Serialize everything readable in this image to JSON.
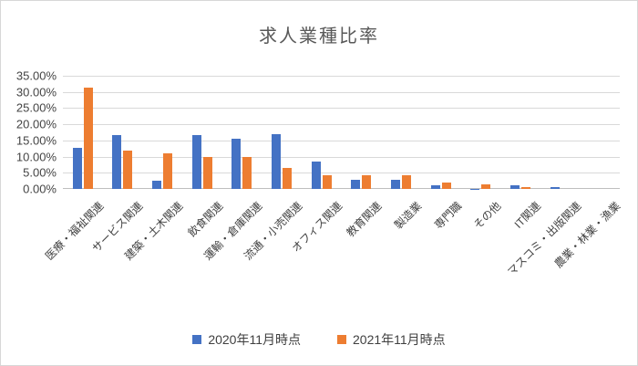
{
  "chart_data": {
    "type": "bar",
    "title": "求人業種比率",
    "categories": [
      "医療・福祉関連",
      "サービス関連",
      "建築・土木関連",
      "飲食関連",
      "運輸・倉庫関連",
      "流通・小売関連",
      "オフィス関連",
      "教育関連",
      "製造業",
      "専門職",
      "その他",
      "IT関連",
      "マスコミ・出版関連",
      "農業・林業・漁業"
    ],
    "series": [
      {
        "name": "2020年11月時点",
        "color": "#4472C4",
        "values": [
          12.8,
          16.6,
          2.6,
          16.7,
          15.5,
          16.8,
          8.4,
          2.7,
          2.7,
          1.2,
          0.1,
          1.2,
          0.5,
          0.0
        ]
      },
      {
        "name": "2021年11月時点",
        "color": "#ED7D31",
        "values": [
          31.2,
          11.9,
          10.9,
          10.0,
          10.0,
          6.6,
          4.2,
          4.2,
          4.2,
          1.9,
          1.5,
          0.5,
          0.0,
          0.0
        ]
      }
    ],
    "ylim": [
      0,
      35
    ],
    "ytick_step": 5,
    "ytick_labels": [
      "35.00%",
      "30.00%",
      "25.00%",
      "20.00%",
      "15.00%",
      "10.00%",
      "5.00%",
      "0.00%"
    ],
    "value_unit": "percent",
    "grid": true,
    "legend_position": "bottom",
    "colors": {
      "title_text": "#595959",
      "axis_text": "#404040",
      "gridline": "#D9D9D9",
      "axis_line": "#BFBFBF",
      "background": "#FFFFFF",
      "border": "#D7D7D7"
    }
  }
}
